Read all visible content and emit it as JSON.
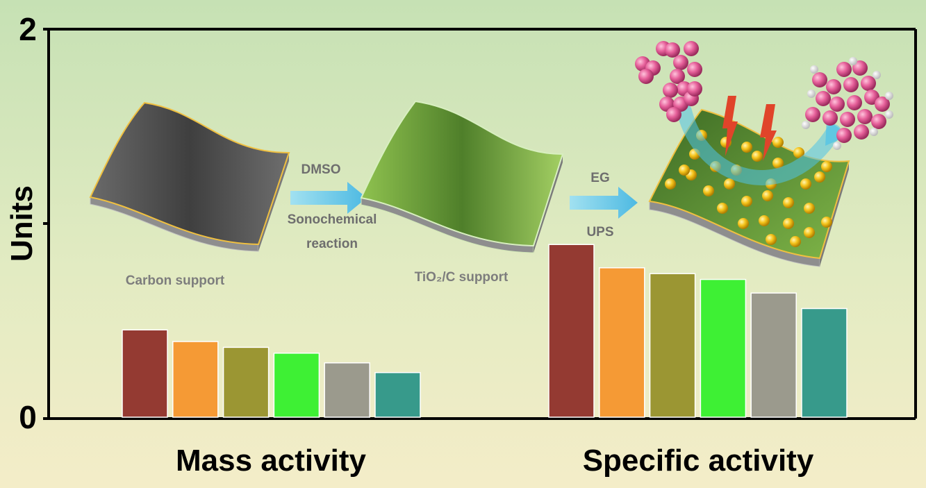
{
  "chart_data": {
    "type": "bar",
    "title": "",
    "ylabel": "Units",
    "xlabel": "",
    "ylim": [
      0,
      2
    ],
    "yticks": [
      "0",
      "",
      "2"
    ],
    "categories": [
      "Mass activity",
      "Specific activity"
    ],
    "series": [
      {
        "color": "#943a32",
        "values": [
          0.45,
          0.89
        ]
      },
      {
        "color": "#f59a35",
        "values": [
          0.39,
          0.77
        ]
      },
      {
        "color": "#9b9633",
        "values": [
          0.36,
          0.74
        ]
      },
      {
        "color": "#3ef034",
        "values": [
          0.33,
          0.71
        ]
      },
      {
        "color": "#9b9a8d",
        "values": [
          0.28,
          0.64
        ]
      },
      {
        "color": "#379a8b",
        "values": [
          0.23,
          0.56
        ]
      }
    ],
    "grid": false,
    "legend": "none"
  },
  "schematic": {
    "carbon_label": "Carbon support",
    "step1_top": "DMSO",
    "step1_mid": "Sonochemical",
    "step1_bottom": "reaction",
    "tio2_label": "TiO₂/C support",
    "step2_top": "EG",
    "step2_bottom": "UPS"
  },
  "colors": {
    "background_top": "#c9e2b5",
    "background_bottom": "#f3ecc6",
    "axis": "#000000",
    "sheet_dark": "#5a5a5a",
    "sheet_green": "#7fb548",
    "sheet_edge": "#f0c040",
    "arrow": "#59c4ea",
    "particle": "#f7c520",
    "molecule": "#e6609a"
  }
}
